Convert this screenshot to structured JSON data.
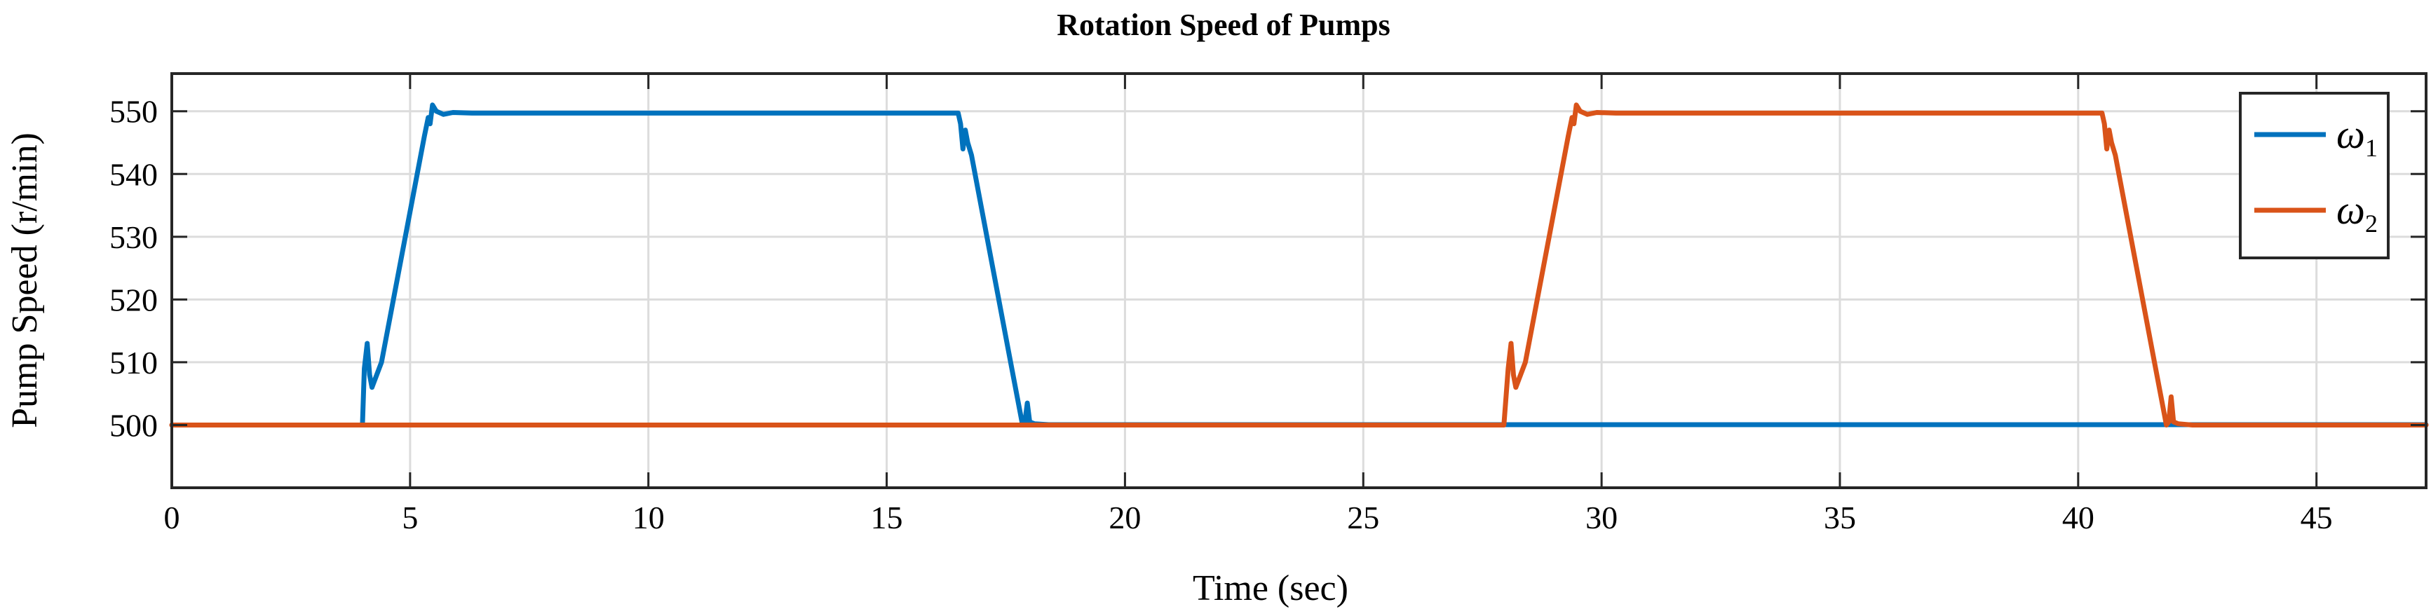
{
  "chart_data": {
    "type": "line",
    "title": "Rotation Speed of Pumps",
    "xlabel": "Time (sec)",
    "ylabel": "Pump Speed (r/min)",
    "xlim": [
      0,
      47.3
    ],
    "ylim": [
      490,
      556
    ],
    "xticks": [
      0,
      5,
      10,
      15,
      20,
      25,
      30,
      35,
      40,
      45
    ],
    "yticks": [
      500,
      510,
      520,
      530,
      540,
      550
    ],
    "grid": true,
    "legend_position": "top-right",
    "colors": {
      "omega1": "#0072BD",
      "omega2": "#D95319"
    },
    "series": [
      {
        "name": "ω1",
        "symbol": "ω",
        "subscript": "1",
        "color": "#0072BD",
        "points": [
          [
            0,
            500
          ],
          [
            4.0,
            500
          ],
          [
            4.04,
            509
          ],
          [
            4.1,
            513
          ],
          [
            4.15,
            508
          ],
          [
            4.2,
            506
          ],
          [
            4.4,
            510
          ],
          [
            5.3,
            546
          ],
          [
            5.38,
            549
          ],
          [
            5.42,
            548
          ],
          [
            5.47,
            551
          ],
          [
            5.55,
            550
          ],
          [
            5.7,
            549.5
          ],
          [
            5.9,
            549.8
          ],
          [
            6.3,
            549.7
          ],
          [
            16.5,
            549.7
          ],
          [
            16.55,
            548
          ],
          [
            16.6,
            544
          ],
          [
            16.65,
            547
          ],
          [
            16.7,
            545
          ],
          [
            16.78,
            543
          ],
          [
            17.6,
            510
          ],
          [
            17.8,
            502
          ],
          [
            17.85,
            500
          ],
          [
            17.9,
            500.5
          ],
          [
            17.95,
            503.5
          ],
          [
            18.0,
            500.5
          ],
          [
            18.1,
            500.2
          ],
          [
            18.4,
            500.05
          ],
          [
            28.0,
            500.05
          ],
          [
            47.3,
            500.05
          ]
        ]
      },
      {
        "name": "ω2",
        "symbol": "ω",
        "subscript": "2",
        "color": "#D95319",
        "points": [
          [
            0,
            500
          ],
          [
            27.95,
            500
          ],
          [
            28.04,
            509
          ],
          [
            28.1,
            513
          ],
          [
            28.15,
            508
          ],
          [
            28.2,
            506
          ],
          [
            28.4,
            510
          ],
          [
            29.3,
            546
          ],
          [
            29.38,
            549
          ],
          [
            29.42,
            548
          ],
          [
            29.47,
            551
          ],
          [
            29.55,
            550
          ],
          [
            29.7,
            549.5
          ],
          [
            29.9,
            549.8
          ],
          [
            30.3,
            549.7
          ],
          [
            40.5,
            549.7
          ],
          [
            40.55,
            548
          ],
          [
            40.6,
            544
          ],
          [
            40.65,
            547
          ],
          [
            40.7,
            545
          ],
          [
            40.78,
            543
          ],
          [
            41.6,
            510
          ],
          [
            41.8,
            502
          ],
          [
            41.85,
            500
          ],
          [
            41.9,
            500.5
          ],
          [
            41.95,
            504.5
          ],
          [
            42.0,
            500.5
          ],
          [
            42.1,
            500.2
          ],
          [
            42.4,
            500
          ],
          [
            47.3,
            500
          ]
        ]
      }
    ]
  }
}
